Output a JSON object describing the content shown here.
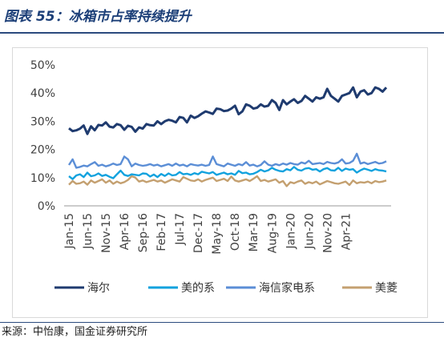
{
  "header": {
    "title": "图表 55：冰箱市占率持续提升"
  },
  "footer": {
    "source": "来源：中怡康，国金证券研究所"
  },
  "chart_data": {
    "type": "line",
    "title": "",
    "xlabel": "",
    "ylabel": "",
    "ylim": [
      0,
      50
    ],
    "y_ticks": [
      "0%",
      "10%",
      "20%",
      "30%",
      "40%",
      "50%"
    ],
    "x_tick_labels": [
      "Jan-15",
      "Jun-15",
      "Nov-15",
      "Apr-16",
      "Sep-16",
      "Feb-17",
      "Jul-17",
      "Dec-17",
      "May-18",
      "Oct-18",
      "Mar-19",
      "Aug-19",
      "Jan-20",
      "Jun-20",
      "Nov-20",
      "Apr-21"
    ],
    "x_tick_index": [
      0,
      5,
      10,
      15,
      20,
      25,
      30,
      35,
      40,
      45,
      50,
      55,
      60,
      65,
      70,
      75
    ],
    "grid": false,
    "legend_position": "bottom",
    "series": [
      {
        "name": "海尔",
        "color": "#1f3b6f",
        "values": [
          27.5,
          26.5,
          26.8,
          27.4,
          28.5,
          25.5,
          28.2,
          26.8,
          28.7,
          28.5,
          29.6,
          28.1,
          27.8,
          29.0,
          28.6,
          27.0,
          28.4,
          28.0,
          26.3,
          27.8,
          27.4,
          29.0,
          28.6,
          28.5,
          30.0,
          29.0,
          30.0,
          30.5,
          30.2,
          29.6,
          31.5,
          31.2,
          29.6,
          32.0,
          31.2,
          31.8,
          32.7,
          33.5,
          33.1,
          32.6,
          34.5,
          34.3,
          33.6,
          33.8,
          34.5,
          35.5,
          32.5,
          33.5,
          36.0,
          35.5,
          34.5,
          34.8,
          36.0,
          35.2,
          35.5,
          37.5,
          36.5,
          34.0,
          37.5,
          36.0,
          37.0,
          37.8,
          36.5,
          37.2,
          39.0,
          38.0,
          37.0,
          38.5,
          38.0,
          38.5,
          41.5,
          39.0,
          38.0,
          37.0,
          39.0,
          39.5,
          40.0,
          42.0,
          38.5,
          40.5,
          41.0,
          39.5,
          40.0,
          42.0,
          41.5,
          40.5,
          42.0
        ]
      },
      {
        "name": "美的系",
        "color": "#12a2de",
        "values": [
          10.5,
          9.5,
          10.8,
          11.2,
          10.2,
          11.8,
          10.5,
          10.8,
          11.5,
          10.6,
          11.0,
          10.3,
          9.8,
          11.2,
          12.5,
          11.0,
          10.6,
          11.2,
          11.0,
          10.8,
          11.5,
          11.4,
          10.4,
          11.1,
          10.2,
          11.3,
          10.6,
          11.5,
          10.8,
          11.0,
          12.0,
          11.2,
          11.4,
          11.0,
          11.6,
          11.2,
          12.1,
          11.8,
          11.5,
          12.0,
          11.0,
          11.4,
          11.8,
          11.2,
          11.5,
          11.0,
          12.4,
          11.6,
          11.8,
          11.2,
          11.4,
          12.0,
          12.8,
          12.2,
          12.6,
          13.5,
          12.8,
          12.4,
          12.2,
          13.0,
          12.6,
          13.8,
          12.8,
          12.5,
          13.2,
          13.4,
          12.8,
          13.0,
          12.2,
          13.0,
          13.4,
          12.6,
          12.5,
          13.5,
          12.4,
          13.2,
          12.8,
          13.0,
          11.8,
          12.6,
          13.2,
          12.8,
          12.4,
          13.0,
          12.6,
          12.5,
          12.2
        ]
      },
      {
        "name": "海信家电系",
        "color": "#5b8ed6",
        "values": [
          14.5,
          16.5,
          13.5,
          13.8,
          14.3,
          14.0,
          14.8,
          15.5,
          14.2,
          14.6,
          14.0,
          14.4,
          15.0,
          14.5,
          14.8,
          17.5,
          16.5,
          14.0,
          15.0,
          14.5,
          14.2,
          14.4,
          14.8,
          14.3,
          14.6,
          14.0,
          14.4,
          14.8,
          14.2,
          15.0,
          14.3,
          14.6,
          14.0,
          14.8,
          14.5,
          14.3,
          14.6,
          14.2,
          14.5,
          17.5,
          14.8,
          14.4,
          14.0,
          15.0,
          14.6,
          14.2,
          14.8,
          14.4,
          15.5,
          14.3,
          14.6,
          14.0,
          14.5,
          15.8,
          14.6,
          14.2,
          14.8,
          14.4,
          15.0,
          14.6,
          15.2,
          14.8,
          14.6,
          15.4,
          15.0,
          16.0,
          14.8,
          15.0,
          15.2,
          14.8,
          15.6,
          15.2,
          15.0,
          15.4,
          16.5,
          15.0,
          15.2,
          16.0,
          18.5,
          15.0,
          15.4,
          14.8,
          15.2,
          15.6,
          15.0,
          15.2,
          15.8
        ]
      },
      {
        "name": "美菱",
        "color": "#c4a070",
        "values": [
          7.5,
          8.8,
          7.8,
          8.0,
          8.6,
          7.5,
          9.0,
          8.2,
          8.8,
          9.4,
          8.2,
          9.0,
          7.8,
          8.6,
          8.0,
          8.4,
          9.2,
          10.5,
          10.0,
          8.6,
          9.0,
          8.4,
          8.8,
          9.2,
          8.6,
          9.0,
          8.2,
          8.8,
          9.4,
          9.0,
          8.6,
          10.2,
          9.6,
          9.0,
          8.8,
          9.4,
          8.6,
          9.2,
          9.6,
          10.0,
          8.8,
          9.2,
          9.6,
          8.8,
          10.4,
          9.0,
          8.6,
          9.0,
          9.4,
          8.8,
          9.6,
          10.5,
          8.8,
          9.2,
          8.6,
          9.0,
          9.4,
          8.2,
          8.8,
          7.0,
          8.4,
          8.0,
          8.6,
          9.0,
          7.8,
          8.4,
          8.0,
          8.6,
          7.6,
          8.2,
          8.8,
          8.4,
          8.0,
          7.8,
          8.2,
          8.6,
          7.4,
          9.0,
          8.0,
          8.4,
          8.2,
          8.6,
          8.0,
          8.8,
          8.4,
          8.6,
          9.0
        ]
      }
    ]
  }
}
